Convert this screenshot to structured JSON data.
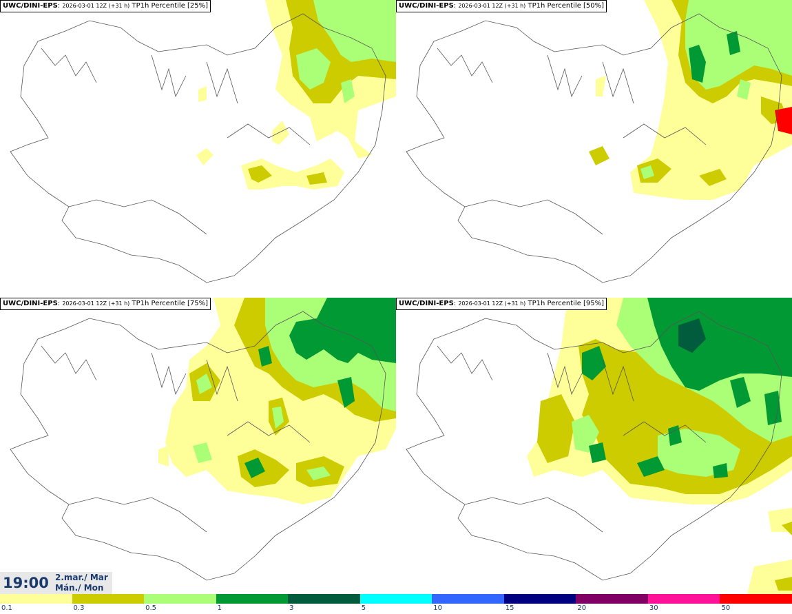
{
  "panels": [
    {
      "model": "UWC/DINI-EPS",
      "meta": "2026-03-01 12Z (+31 h)",
      "product": "TP1h Percentile [25%]",
      "percentile": 25
    },
    {
      "model": "UWC/DINI-EPS",
      "meta": "2026-03-01 12Z (+31 h)",
      "product": "TP1h Percentile [50%]",
      "percentile": 50
    },
    {
      "model": "UWC/DINI-EPS",
      "meta": "2026-03-01 12Z (+31 h)",
      "product": "TP1h Percentile [75%]",
      "percentile": 75
    },
    {
      "model": "UWC/DINI-EPS",
      "meta": "2026-03-01 12Z (+31 h)",
      "product": "TP1h Percentile [95%]",
      "percentile": 95
    }
  ],
  "time": {
    "clock": "19:00",
    "date_line1": "2.mar./ Mar",
    "date_line2": "Mán./ Mon"
  },
  "legend": {
    "colors": [
      "#ffff99",
      "#cccc00",
      "#aaff77",
      "#009933",
      "#005c3d",
      "#00ffff",
      "#3366ff",
      "#000080",
      "#800066",
      "#ff1199",
      "#ff0000"
    ],
    "ticks": [
      "0.1",
      "0.3",
      "0.5",
      "1",
      "3",
      "5",
      "10",
      "15",
      "20",
      "30",
      "50"
    ]
  }
}
